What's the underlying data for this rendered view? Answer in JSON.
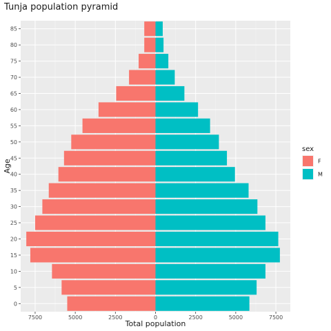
{
  "chart_data": {
    "type": "bar",
    "orientation": "horizontal",
    "title": "Tunja population pyramid",
    "xlabel": "Total population",
    "ylabel": "Age",
    "xlim": [
      -8400,
      8400
    ],
    "x_ticks": [
      -7500,
      -5000,
      -2500,
      0,
      2500,
      5000,
      7500
    ],
    "x_tick_labels": [
      "7500",
      "5000",
      "2500",
      "0",
      "2500",
      "5000",
      "7500"
    ],
    "categories": [
      "0",
      "5",
      "10",
      "15",
      "20",
      "25",
      "30",
      "35",
      "40",
      "45",
      "50",
      "55",
      "60",
      "65",
      "70",
      "75",
      "80",
      "85"
    ],
    "series": [
      {
        "name": "F",
        "color": "#F8766D",
        "values": [
          5500,
          5850,
          6450,
          7800,
          8050,
          7500,
          7050,
          6650,
          6050,
          5700,
          5250,
          4550,
          3550,
          2450,
          1650,
          1050,
          700,
          700
        ]
      },
      {
        "name": "M",
        "color": "#00BFC4",
        "values": [
          5850,
          6300,
          6850,
          7750,
          7650,
          6850,
          6350,
          5800,
          4950,
          4450,
          3950,
          3400,
          2650,
          1800,
          1200,
          800,
          500,
          450
        ]
      }
    ],
    "legend": {
      "title": "sex",
      "position": "right"
    },
    "grid": true,
    "panel_background": "#EBEBEB"
  }
}
